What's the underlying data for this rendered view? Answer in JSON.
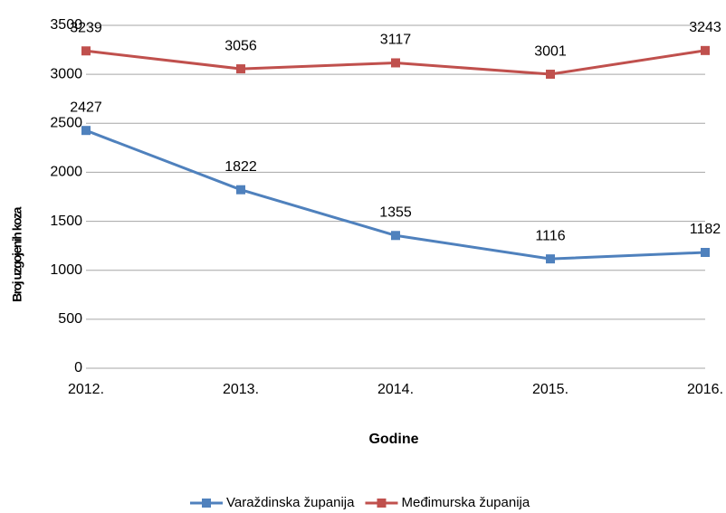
{
  "chart_data": {
    "type": "line",
    "categories": [
      "2012.",
      "2013.",
      "2014.",
      "2015.",
      "2016."
    ],
    "series": [
      {
        "name": "Varaždinska županija",
        "color": "#4f81bd",
        "values": [
          2427,
          1822,
          1355,
          1116,
          1182
        ]
      },
      {
        "name": "Međimurska županija",
        "color": "#c0504d",
        "values": [
          3239,
          3056,
          3117,
          3001,
          3243
        ]
      }
    ],
    "ylim": [
      0,
      3500
    ],
    "yticks": [
      0,
      500,
      1000,
      1500,
      2000,
      2500,
      3000,
      3500
    ],
    "xlabel": "Godine",
    "ylabel": "Broj uzgojenih koza",
    "grid": true,
    "legend": "bottom"
  }
}
